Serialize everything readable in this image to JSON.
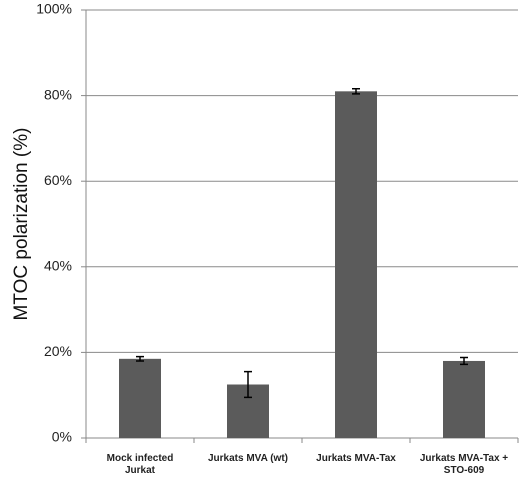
{
  "chart_data": {
    "type": "bar",
    "ylabel": "MTOC polarization  (%)",
    "categories": [
      "Mock infected\nJurkat",
      "Jurkats MVA (wt)",
      "Jurkats MVA-Tax",
      "Jurkats MVA-Tax +\nSTO-609"
    ],
    "values": [
      18.5,
      12.5,
      81,
      18
    ],
    "errors": [
      0.5,
      3,
      0.6,
      0.8
    ],
    "color": "#5b5b5b",
    "ylim": [
      0,
      100
    ],
    "yticks": [
      {
        "value": 0,
        "label": "0%"
      },
      {
        "value": 20,
        "label": "20%"
      },
      {
        "value": 40,
        "label": "40%"
      },
      {
        "value": 60,
        "label": "60%"
      },
      {
        "value": 80,
        "label": "80%"
      },
      {
        "value": 100,
        "label": "100%"
      }
    ],
    "grid": true
  }
}
